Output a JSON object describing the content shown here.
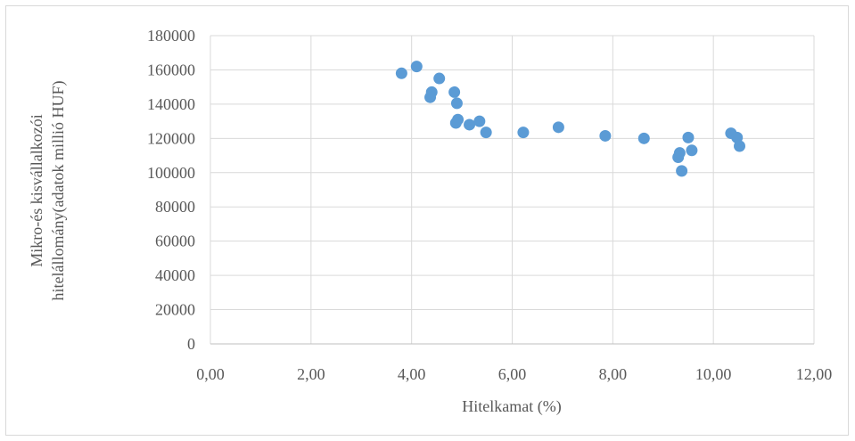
{
  "chart_data": {
    "type": "scatter",
    "title": "",
    "xlabel": "Hitelkamat (%)",
    "ylabel_lines": [
      "Mikro-és kisvállalkozói",
      "hitelállomány(adatok millió HUF)"
    ],
    "xlim": [
      0,
      12
    ],
    "ylim": [
      0,
      180000
    ],
    "x_ticks": [
      0,
      2,
      4,
      6,
      8,
      10,
      12
    ],
    "x_tick_labels": [
      "0,00",
      "2,00",
      "4,00",
      "6,00",
      "8,00",
      "10,00",
      "12,00"
    ],
    "y_ticks": [
      0,
      20000,
      40000,
      60000,
      80000,
      100000,
      120000,
      140000,
      160000,
      180000
    ],
    "y_tick_labels": [
      "0",
      "20000",
      "40000",
      "60000",
      "80000",
      "100000",
      "120000",
      "140000",
      "160000",
      "180000"
    ],
    "grid": true,
    "marker_color": "#5b9bd5",
    "points": [
      {
        "x": 3.8,
        "y": 158000
      },
      {
        "x": 4.1,
        "y": 162000
      },
      {
        "x": 4.55,
        "y": 155000
      },
      {
        "x": 4.4,
        "y": 147000
      },
      {
        "x": 4.37,
        "y": 144000
      },
      {
        "x": 4.85,
        "y": 147000
      },
      {
        "x": 4.9,
        "y": 140500
      },
      {
        "x": 4.92,
        "y": 131000
      },
      {
        "x": 4.88,
        "y": 129000
      },
      {
        "x": 5.15,
        "y": 128000
      },
      {
        "x": 5.35,
        "y": 130000
      },
      {
        "x": 5.48,
        "y": 123500
      },
      {
        "x": 6.22,
        "y": 123500
      },
      {
        "x": 6.92,
        "y": 126500
      },
      {
        "x": 7.85,
        "y": 121500
      },
      {
        "x": 8.62,
        "y": 120000
      },
      {
        "x": 9.3,
        "y": 109000
      },
      {
        "x": 9.33,
        "y": 111500
      },
      {
        "x": 9.37,
        "y": 101000
      },
      {
        "x": 9.5,
        "y": 120500
      },
      {
        "x": 9.57,
        "y": 113000
      },
      {
        "x": 10.35,
        "y": 123000
      },
      {
        "x": 10.47,
        "y": 120500
      },
      {
        "x": 10.52,
        "y": 115500
      }
    ]
  }
}
